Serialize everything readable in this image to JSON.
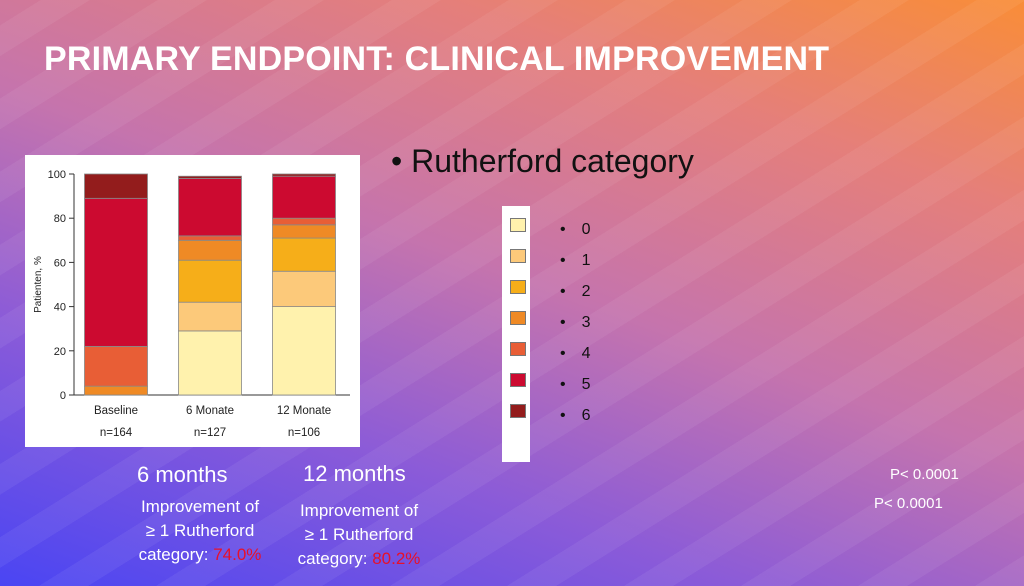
{
  "slide": {
    "title": "PRIMARY ENDPOINT: CLINICAL IMPROVEMENT",
    "bullet": "• Rutherford category"
  },
  "chart_data": {
    "type": "bar",
    "stacked": true,
    "ylabel": "Patienten, %",
    "ylim": [
      0,
      100
    ],
    "yticks": [
      0,
      20,
      40,
      60,
      80,
      100
    ],
    "categories": [
      "Baseline",
      "6 Monate",
      "12 Monate"
    ],
    "sample_sizes": [
      "n=164",
      "n=127",
      "n=106"
    ],
    "series": [
      {
        "name": "0",
        "color": "#fff2ad",
        "values": [
          0,
          29,
          40
        ]
      },
      {
        "name": "1",
        "color": "#fcc97a",
        "values": [
          0,
          13,
          16
        ]
      },
      {
        "name": "2",
        "color": "#f6ae19",
        "values": [
          0,
          19,
          15
        ]
      },
      {
        "name": "3",
        "color": "#ef8a25",
        "values": [
          4,
          9,
          6
        ]
      },
      {
        "name": "4",
        "color": "#e85e36",
        "values": [
          18,
          2,
          3
        ]
      },
      {
        "name": "5",
        "color": "#cc0a30",
        "values": [
          67,
          26,
          19
        ]
      },
      {
        "name": "6",
        "color": "#931c1c",
        "values": [
          11,
          1,
          1
        ]
      }
    ]
  },
  "legend": {
    "bullet": "•",
    "items": [
      "0",
      "1",
      "2",
      "3",
      "4",
      "5",
      "6"
    ]
  },
  "results": {
    "six": {
      "heading": "6 months",
      "line1": "Improvement of",
      "line2": "≥ 1 Rutherford",
      "line3": "category: ",
      "pct": "74.0%"
    },
    "twelve": {
      "heading": "12 months",
      "line1": "Improvement of",
      "line2": "≥ 1 Rutherford",
      "line3": "category: ",
      "pct": "80.2%"
    },
    "p1": "P< 0.0001",
    "p2": "P< 0.0001"
  }
}
